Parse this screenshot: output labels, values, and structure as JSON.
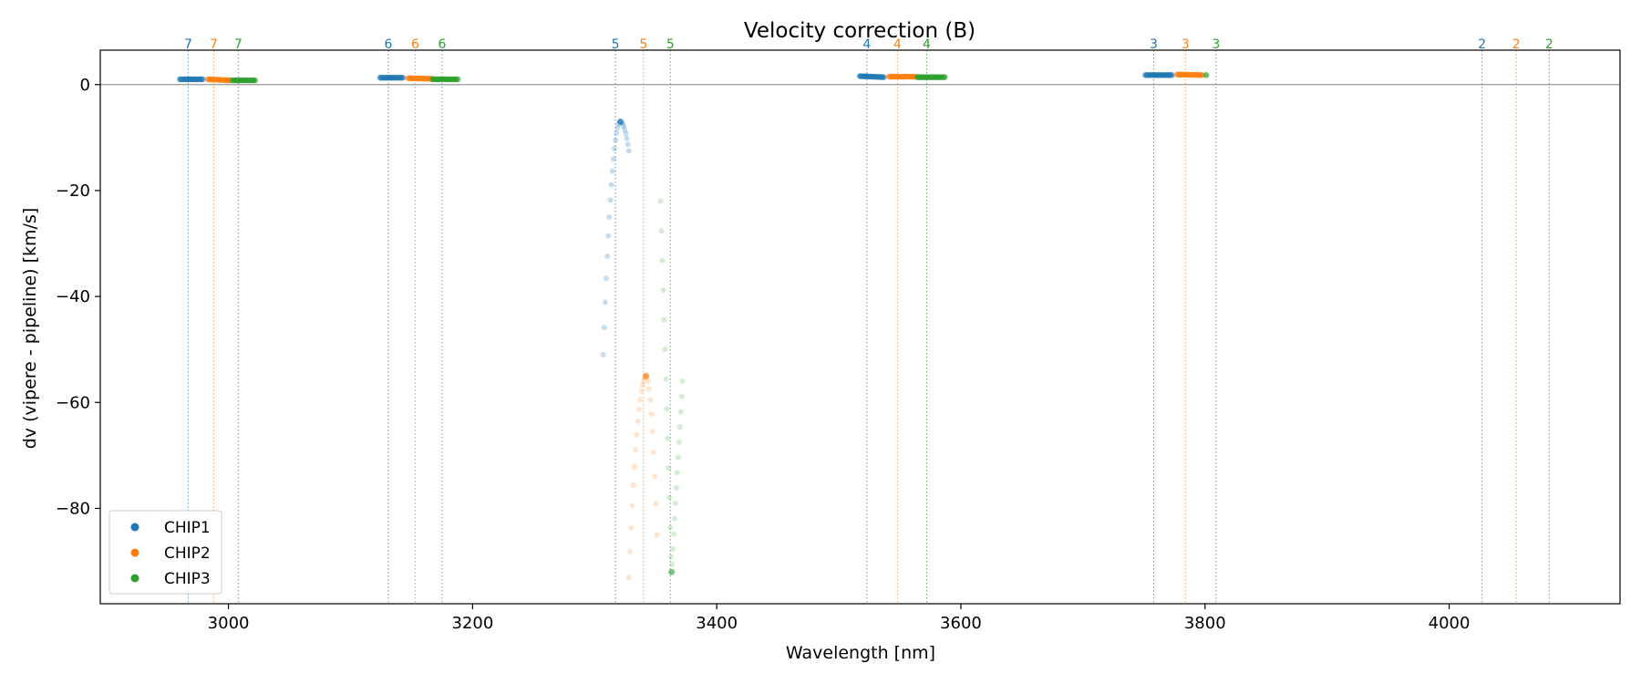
{
  "chart_data": {
    "type": "scatter",
    "title": "Velocity correction (B)",
    "xlabel": "Wavelength [nm]",
    "ylabel": "dv (vipere - pipeline) [km/s]",
    "xlim": [
      2895,
      4140
    ],
    "ylim": [
      -98,
      6.5
    ],
    "xticks": [
      3000,
      3200,
      3400,
      3600,
      3800,
      4000
    ],
    "yticks": [
      0,
      -20,
      -40,
      -60,
      -80
    ],
    "ytick_labels": [
      "0",
      "−20",
      "−40",
      "−60",
      "−80"
    ],
    "zero_line": 0,
    "grid": false,
    "legend_position": "lower-left",
    "colors": {
      "CHIP1": "#1f77b4",
      "CHIP2": "#ff7f0e",
      "CHIP3": "#2ca02c"
    },
    "order_markers": [
      {
        "chip": "CHIP1",
        "order": "7",
        "x": 2967
      },
      {
        "chip": "CHIP2",
        "order": "7",
        "x": 2988
      },
      {
        "chip": "CHIP3",
        "order": "7",
        "x": 3008
      },
      {
        "chip": "CHIP1",
        "order": "6",
        "x": 3131
      },
      {
        "chip": "CHIP2",
        "order": "6",
        "x": 3153
      },
      {
        "chip": "CHIP3",
        "order": "6",
        "x": 3175
      },
      {
        "chip": "CHIP1",
        "order": "5",
        "x": 3317
      },
      {
        "chip": "CHIP2",
        "order": "5",
        "x": 3340
      },
      {
        "chip": "CHIP3",
        "order": "5",
        "x": 3362
      },
      {
        "chip": "CHIP1",
        "order": "4",
        "x": 3523
      },
      {
        "chip": "CHIP2",
        "order": "4",
        "x": 3548
      },
      {
        "chip": "CHIP3",
        "order": "4",
        "x": 3572
      },
      {
        "chip": "CHIP1",
        "order": "3",
        "x": 3758
      },
      {
        "chip": "CHIP2",
        "order": "3",
        "x": 3784
      },
      {
        "chip": "CHIP3",
        "order": "3",
        "x": 3809
      },
      {
        "chip": "CHIP1",
        "order": "2",
        "x": 4027
      },
      {
        "chip": "CHIP2",
        "order": "2",
        "x": 4055
      },
      {
        "chip": "CHIP3",
        "order": "2",
        "x": 4082
      }
    ],
    "series": [
      {
        "name": "CHIP1",
        "segments": [
          {
            "x0": 2960,
            "x1": 2979,
            "y0": 1.0,
            "y1": 1.0
          },
          {
            "x0": 3124,
            "x1": 3143,
            "y0": 1.3,
            "y1": 1.3
          },
          {
            "x0": 3517,
            "x1": 3537,
            "y0": 1.6,
            "y1": 1.4
          },
          {
            "x0": 3751,
            "x1": 3773,
            "y0": 1.8,
            "y1": 1.8
          }
        ],
        "curve": {
          "x0": 3307,
          "x1": 3328,
          "ymin": -51,
          "peak_x": 3321,
          "peak_y": -7,
          "ymax_end": -12.5,
          "alpha": 0.25
        }
      },
      {
        "name": "CHIP2",
        "segments": [
          {
            "x0": 2983,
            "x1": 3002,
            "y0": 1.0,
            "y1": 0.8
          },
          {
            "x0": 3147,
            "x1": 3167,
            "y0": 1.2,
            "y1": 1.1
          },
          {
            "x0": 3541,
            "x1": 3563,
            "y0": 1.5,
            "y1": 1.5
          },
          {
            "x0": 3777,
            "x1": 3798,
            "y0": 1.9,
            "y1": 1.8
          }
        ],
        "curve": {
          "x0": 3328,
          "x1": 3351,
          "ymin": -93,
          "peak_x": 3342,
          "peak_y": -55,
          "ymax_end": -85,
          "alpha": 0.2
        }
      },
      {
        "name": "CHIP3",
        "segments": [
          {
            "x0": 3003,
            "x1": 3022,
            "y0": 0.8,
            "y1": 0.8
          },
          {
            "x0": 3167,
            "x1": 3188,
            "y0": 1.0,
            "y1": 1.0
          },
          {
            "x0": 3564,
            "x1": 3587,
            "y0": 1.4,
            "y1": 1.4
          },
          {
            "x0": 3801,
            "x1": 3801,
            "y0": 1.8,
            "y1": 1.8
          }
        ],
        "curve": {
          "x0": 3354,
          "x1": 3372,
          "ymin": -92,
          "peak_x": 3363,
          "peak_y": -92,
          "ymax_end": -56,
          "alpha": 0.2,
          "start_y": -22
        }
      }
    ]
  }
}
